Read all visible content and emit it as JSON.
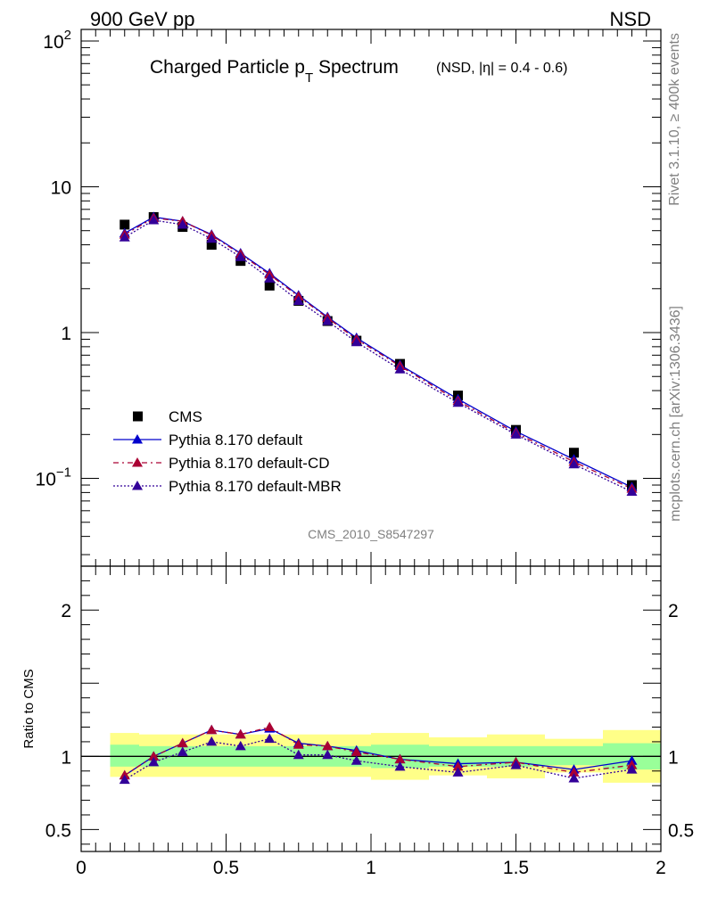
{
  "header": {
    "energy_label": "900 GeV pp",
    "process_label": "NSD"
  },
  "side_labels": {
    "rivet": "Rivet 3.1.10, ≥ 400k events",
    "mcplots": "mcplots.cern.ch [arXiv:1306.3436]"
  },
  "plot_title": {
    "main_a": "Charged Particle p",
    "main_sub": "T",
    "main_b": " Spectrum",
    "sub": "(NSD, |η| = 0.4 - 0.6)"
  },
  "analysis_id": "CMS_2010_S8547297",
  "colors": {
    "data": "#000000",
    "default": "#0000cc",
    "cd": "#aa0033",
    "mbr": "#330099",
    "band_inner": "#99ff99",
    "band_outer": "#ffff88",
    "ref_line": "#000000"
  },
  "chart_data": [
    {
      "type": "scatter",
      "panel": "main",
      "log_y": true,
      "xlim": [
        0,
        2
      ],
      "ylim": [
        0.025,
        120
      ],
      "y_tick_labels": [
        {
          "value": 100,
          "base": "10",
          "exp": "2"
        },
        {
          "value": 10,
          "base": "10",
          "exp": ""
        },
        {
          "value": 1,
          "base": "1",
          "exp": ""
        },
        {
          "value": 0.1,
          "base": "10",
          "exp": "−1"
        }
      ],
      "legend": [
        {
          "label": "CMS",
          "style": "square",
          "series": "data"
        },
        {
          "label": "Pythia 8.170 default",
          "style": "solid",
          "series": "default"
        },
        {
          "label": "Pythia 8.170 default-CD",
          "style": "dashed",
          "series": "cd"
        },
        {
          "label": "Pythia 8.170 default-MBR",
          "style": "dotted",
          "series": "mbr"
        }
      ],
      "x": [
        0.15,
        0.25,
        0.35,
        0.45,
        0.55,
        0.65,
        0.75,
        0.85,
        0.95,
        1.1,
        1.3,
        1.5,
        1.7,
        1.9
      ],
      "series": [
        {
          "name": "CMS",
          "key": "data",
          "values": [
            5.5,
            6.2,
            5.3,
            4.0,
            3.1,
            2.1,
            1.65,
            1.2,
            0.88,
            0.61,
            0.37,
            0.215,
            0.15,
            0.09
          ]
        },
        {
          "name": "Pythia 8.170 default",
          "key": "default",
          "values": [
            4.8,
            6.2,
            5.8,
            4.7,
            3.5,
            2.55,
            1.8,
            1.28,
            0.92,
            0.6,
            0.35,
            0.21,
            0.135,
            0.087
          ]
        },
        {
          "name": "Pythia 8.170 default-CD",
          "key": "cd",
          "values": [
            4.7,
            6.1,
            5.8,
            4.65,
            3.45,
            2.5,
            1.77,
            1.26,
            0.9,
            0.59,
            0.34,
            0.205,
            0.13,
            0.085
          ]
        },
        {
          "name": "Pythia 8.170 default-MBR",
          "key": "mbr",
          "values": [
            4.5,
            5.9,
            5.5,
            4.4,
            3.3,
            2.35,
            1.65,
            1.2,
            0.86,
            0.56,
            0.33,
            0.2,
            0.125,
            0.081
          ]
        }
      ]
    },
    {
      "type": "line",
      "panel": "ratio",
      "ylabel": "Ratio to CMS",
      "xlim": [
        0,
        2
      ],
      "ylim": [
        0.35,
        2.3
      ],
      "y_tick_labels": [
        {
          "value": 2,
          "text": "2"
        },
        {
          "value": 1,
          "text": "1"
        },
        {
          "value": 0.5,
          "text": "0.5"
        }
      ],
      "x_tick_labels": [
        {
          "value": 0,
          "text": "0"
        },
        {
          "value": 0.5,
          "text": "0.5"
        },
        {
          "value": 1,
          "text": "1"
        },
        {
          "value": 1.5,
          "text": "1.5"
        },
        {
          "value": 2,
          "text": "2"
        }
      ],
      "bands": [
        {
          "x0": 0.1,
          "x1": 0.2,
          "inner": [
            0.93,
            1.08
          ],
          "outer": [
            0.86,
            1.16
          ]
        },
        {
          "x0": 0.2,
          "x1": 0.3,
          "inner": [
            0.93,
            1.07
          ],
          "outer": [
            0.86,
            1.15
          ]
        },
        {
          "x0": 0.3,
          "x1": 0.4,
          "inner": [
            0.93,
            1.07
          ],
          "outer": [
            0.86,
            1.15
          ]
        },
        {
          "x0": 0.4,
          "x1": 0.5,
          "inner": [
            0.93,
            1.07
          ],
          "outer": [
            0.86,
            1.15
          ]
        },
        {
          "x0": 0.5,
          "x1": 0.6,
          "inner": [
            0.93,
            1.07
          ],
          "outer": [
            0.86,
            1.15
          ]
        },
        {
          "x0": 0.6,
          "x1": 0.7,
          "inner": [
            0.93,
            1.07
          ],
          "outer": [
            0.86,
            1.15
          ]
        },
        {
          "x0": 0.7,
          "x1": 0.8,
          "inner": [
            0.93,
            1.07
          ],
          "outer": [
            0.86,
            1.15
          ]
        },
        {
          "x0": 0.8,
          "x1": 0.9,
          "inner": [
            0.93,
            1.07
          ],
          "outer": [
            0.86,
            1.15
          ]
        },
        {
          "x0": 0.9,
          "x1": 1.0,
          "inner": [
            0.93,
            1.07
          ],
          "outer": [
            0.86,
            1.15
          ]
        },
        {
          "x0": 1.0,
          "x1": 1.2,
          "inner": [
            0.92,
            1.08
          ],
          "outer": [
            0.84,
            1.16
          ]
        },
        {
          "x0": 1.2,
          "x1": 1.4,
          "inner": [
            0.93,
            1.07
          ],
          "outer": [
            0.87,
            1.13
          ]
        },
        {
          "x0": 1.4,
          "x1": 1.6,
          "inner": [
            0.93,
            1.07
          ],
          "outer": [
            0.85,
            1.15
          ]
        },
        {
          "x0": 1.6,
          "x1": 1.8,
          "inner": [
            0.94,
            1.07
          ],
          "outer": [
            0.89,
            1.12
          ]
        },
        {
          "x0": 1.8,
          "x1": 2.0,
          "inner": [
            0.91,
            1.09
          ],
          "outer": [
            0.82,
            1.18
          ]
        }
      ],
      "x": [
        0.15,
        0.25,
        0.35,
        0.45,
        0.55,
        0.65,
        0.75,
        0.85,
        0.95,
        1.1,
        1.3,
        1.5,
        1.7,
        1.9
      ],
      "series": [
        {
          "name": "Pythia 8.170 default",
          "key": "default",
          "values": [
            0.87,
            1.0,
            1.09,
            1.18,
            1.15,
            1.19,
            1.09,
            1.07,
            1.04,
            0.98,
            0.95,
            0.96,
            0.91,
            0.97
          ]
        },
        {
          "name": "Pythia 8.170 default-CD",
          "key": "cd",
          "values": [
            0.87,
            1.0,
            1.09,
            1.18,
            1.15,
            1.2,
            1.08,
            1.07,
            1.03,
            0.98,
            0.93,
            0.96,
            0.89,
            0.94
          ]
        },
        {
          "name": "Pythia 8.170 default-MBR",
          "key": "mbr",
          "values": [
            0.84,
            0.96,
            1.03,
            1.1,
            1.07,
            1.12,
            1.01,
            1.01,
            0.97,
            0.93,
            0.89,
            0.94,
            0.85,
            0.91
          ]
        }
      ]
    }
  ]
}
